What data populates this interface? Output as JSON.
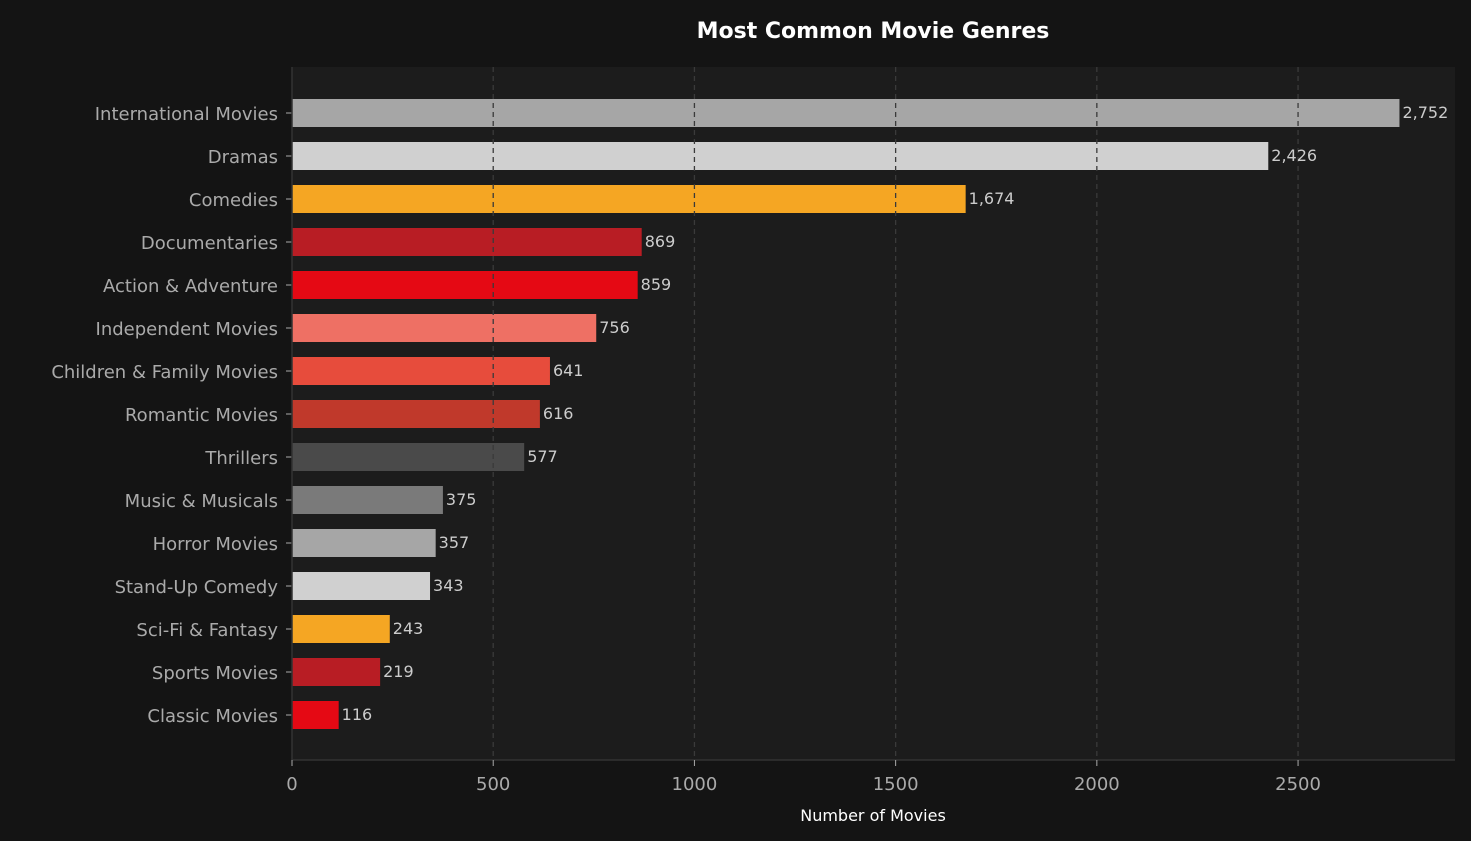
{
  "chart_data": {
    "type": "bar",
    "orientation": "horizontal",
    "title": "Most Common Movie Genres",
    "xlabel": "Number of Movies",
    "ylabel": "",
    "xlim": [
      0,
      2890
    ],
    "xticks": [
      0,
      500,
      1000,
      1500,
      2000,
      2500
    ],
    "grid": "x, dashed",
    "categories": [
      "International Movies",
      "Dramas",
      "Comedies",
      "Documentaries",
      "Action & Adventure",
      "Independent Movies",
      "Children & Family Movies",
      "Romantic Movies",
      "Thrillers",
      "Music & Musicals",
      "Horror Movies",
      "Stand-Up Comedy",
      "Sci-Fi & Fantasy",
      "Sports Movies",
      "Classic Movies"
    ],
    "values": [
      2752,
      2426,
      1674,
      869,
      859,
      756,
      641,
      616,
      577,
      375,
      357,
      343,
      243,
      219,
      116
    ],
    "data_labels": [
      "2,752",
      "2,426",
      "1,674",
      "869",
      "859",
      "756",
      "641",
      "616",
      "577",
      "375",
      "357",
      "343",
      "243",
      "219",
      "116"
    ],
    "colors": [
      "#a6a6a6",
      "#d0d0d0",
      "#f5a623",
      "#b81d24",
      "#e50914",
      "#ee7064",
      "#e74c3c",
      "#c0392b",
      "#4a4a4a",
      "#7a7a7a",
      "#a6a6a6",
      "#d0d0d0",
      "#f5a623",
      "#b81d24",
      "#e50914"
    ],
    "background": "#141414",
    "plot_background": "#1c1c1c"
  }
}
